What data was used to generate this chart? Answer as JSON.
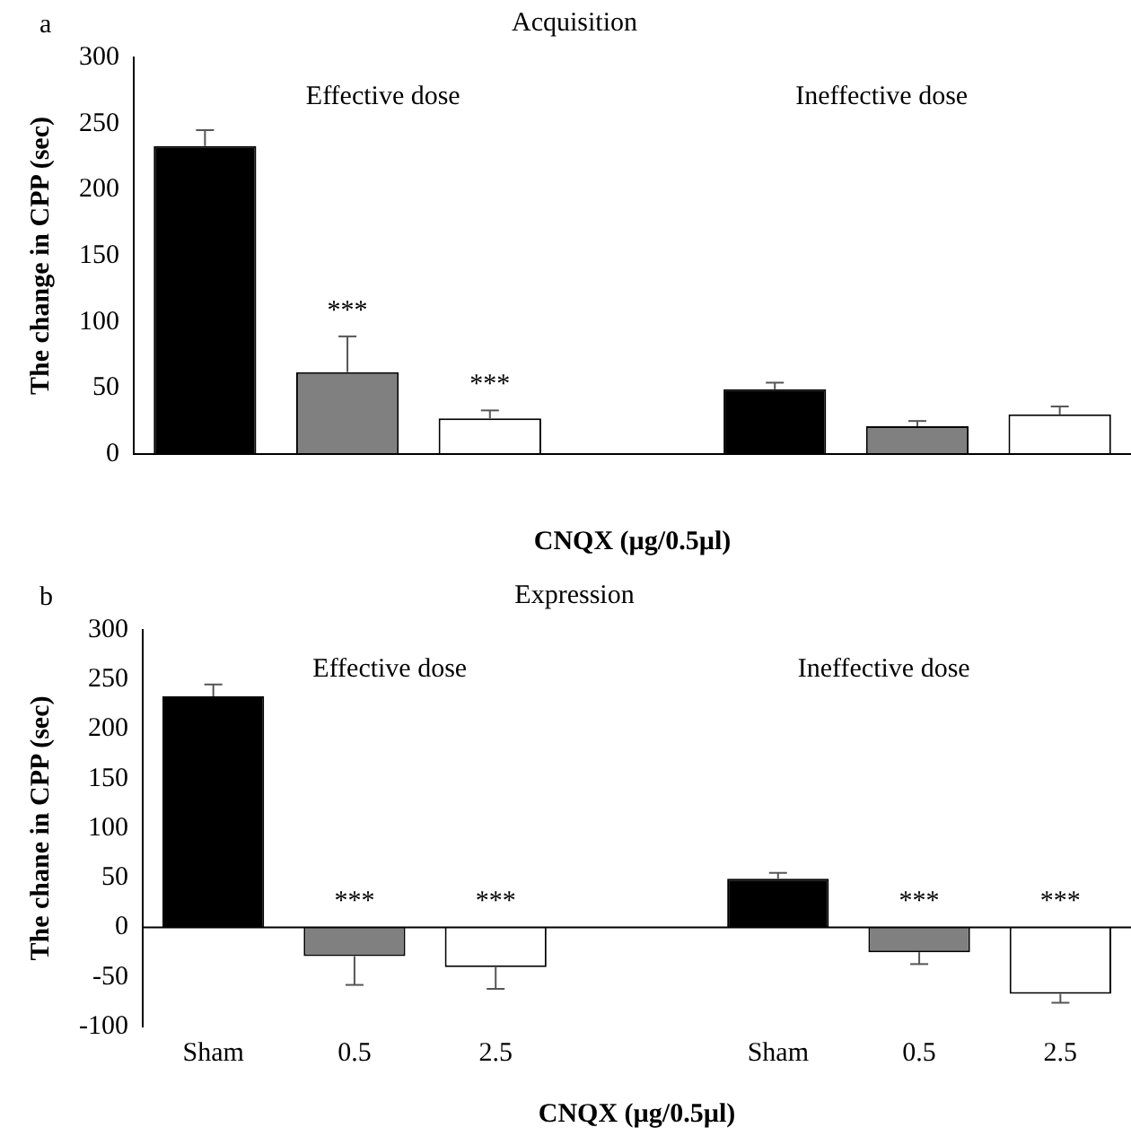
{
  "chart_data": [
    {
      "type": "bar",
      "title": "Acquisition",
      "ylabel": "The change in CPP (sec)",
      "xlabel": "CNQX (µg/0.5µl)",
      "categories": [
        null,
        null,
        null,
        null,
        null,
        null,
        null
      ],
      "values": [
        233,
        62,
        27,
        null,
        49,
        21,
        30
      ],
      "colors": [
        "#000000",
        "#808080",
        "#ffffff",
        "#ffffff",
        "#000000",
        "#808080",
        "#ffffff"
      ],
      "errors": [
        [
          233,
          245
        ],
        [
          62,
          89
        ],
        [
          27,
          33
        ],
        null,
        [
          49,
          54
        ],
        [
          21,
          25
        ],
        [
          30,
          36
        ]
      ],
      "value_labels": [
        null,
        "***",
        "***",
        null,
        null,
        null,
        null
      ],
      "ylim": [
        0,
        300
      ],
      "yticks": [
        0,
        50,
        100,
        150,
        200,
        250,
        300
      ],
      "annotations": [
        "a",
        "Effective dose",
        "Ineffective dose"
      ]
    },
    {
      "type": "bar",
      "title": "Expression",
      "ylabel": "The chane in CPP (sec)",
      "xlabel": "CNQX (µg/0.5µl)",
      "categories": [
        "Sham",
        "0.5",
        "2.5",
        null,
        "Sham",
        "0.5",
        "2.5"
      ],
      "values": [
        233,
        -29,
        -40,
        null,
        49,
        -25,
        -67
      ],
      "colors": [
        "#000000",
        "#808080",
        "#ffffff",
        "#ffffff",
        "#000000",
        "#808080",
        "#ffffff"
      ],
      "errors": [
        [
          233,
          245
        ],
        [
          -58,
          -29
        ],
        [
          -62,
          -40
        ],
        null,
        [
          49,
          55
        ],
        [
          -37,
          -25
        ],
        [
          -76,
          -67
        ]
      ],
      "value_labels": [
        null,
        "***",
        "***",
        null,
        null,
        "***",
        "***"
      ],
      "ylim": [
        -100,
        300
      ],
      "yticks": [
        -100,
        -50,
        0,
        50,
        100,
        150,
        200,
        250,
        300
      ],
      "annotations": [
        "b",
        "Effective dose",
        "Ineffective dose"
      ]
    }
  ]
}
